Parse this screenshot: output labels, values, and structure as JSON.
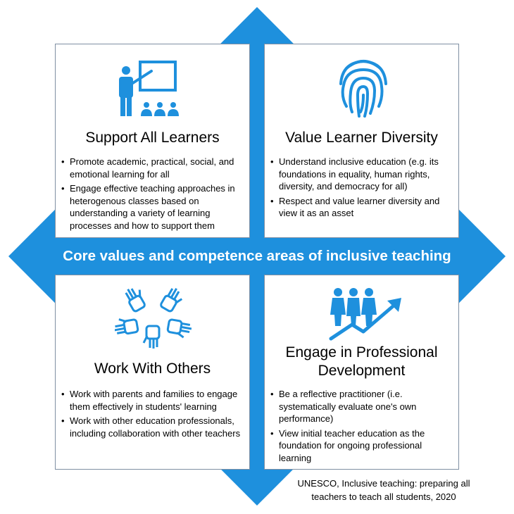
{
  "colors": {
    "accent": "#1e90dd",
    "border": "#7f8fa3",
    "icon": "#1e90dd"
  },
  "banner": "Core values and competence areas of inclusive teaching",
  "panels": {
    "support": {
      "icon": "teacher-presentation-icon",
      "title": "Support All Learners",
      "bullets": [
        "Promote academic, practical, social, and emotional learning for all",
        "Engage effective teaching approaches in heterogenous classes based on understanding a variety of learning processes and how to support them"
      ]
    },
    "diversity": {
      "icon": "fingerprint-icon",
      "title": "Value Learner Diversity",
      "bullets": [
        "Understand inclusive education (e.g. its foundations in equality, human rights, diversity, and democracy for all)",
        "Respect and value learner diversity and view it as an asset"
      ]
    },
    "others": {
      "icon": "hands-circle-icon",
      "title": "Work With Others",
      "bullets": [
        "Work with parents and families to engage them effectively in students' learning",
        "Work with other education professionals, including collaboration with other teachers"
      ]
    },
    "professional": {
      "icon": "people-growth-icon",
      "title_line1": "Engage in Professional",
      "title_line2": "Development",
      "bullets": [
        "Be a reflective practitioner (i.e. systematically evaluate one's own performance)",
        "View initial teacher education as the foundation for ongoing professional learning"
      ]
    }
  },
  "source_line1": "UNESCO, Inclusive teaching: preparing all",
  "source_line2": "teachers to teach all students, 2020"
}
